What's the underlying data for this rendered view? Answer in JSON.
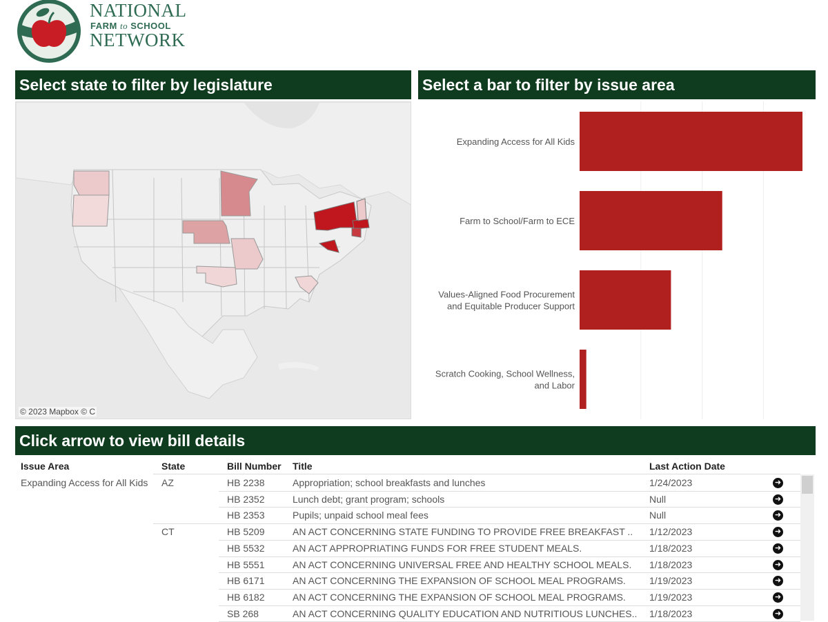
{
  "logo": {
    "line1": "NATIONAL",
    "line2_a": "FARM",
    "line2_to": "to",
    "line2_b": "SCHOOL",
    "line3": "NETWORK"
  },
  "headers": {
    "map": "Select state to filter by legislature",
    "bar": "Select a bar to filter by issue area",
    "table": "Click arrow to view bill details"
  },
  "map": {
    "attribution": "© 2023 Mapbox  © C",
    "highlight_color_dark": "#c0161e",
    "highlight_color_mid": "#d78a8d",
    "highlight_color_light": "#ecc9ca"
  },
  "chart_data": {
    "type": "bar",
    "orientation": "horizontal",
    "categories": [
      "Expanding Access for All Kids",
      "Farm to School/Farm to ECE",
      "Values-Aligned Food Procurement and Equitable Producer Support",
      "Scratch Cooking, School Wellness, and Labor"
    ],
    "category_lines": [
      [
        "Expanding Access for All Kids"
      ],
      [
        "Farm to School/Farm to ECE"
      ],
      [
        "Values-Aligned Food Procurement",
        "and Equitable Producer Support"
      ],
      [
        "Scratch Cooking, School Wellness,",
        "and Labor"
      ]
    ],
    "values": [
      100,
      64,
      41,
      3
    ],
    "xlim": [
      0,
      100
    ],
    "gridlines": [
      27.5,
      55,
      82.5
    ],
    "bar_color": "#b0201f",
    "grid": true
  },
  "table": {
    "columns": [
      "Issue Area",
      "State",
      "Bill Number",
      "Title",
      "Last Action Date"
    ],
    "rows": [
      {
        "issue": "Expanding Access for All Kids",
        "state": "AZ",
        "bill": "HB 2238",
        "title": "Appropriation; school breakfasts and lunches",
        "date": "1/24/2023"
      },
      {
        "issue": "",
        "state": "",
        "bill": "HB 2352",
        "title": "Lunch debt; grant program; schools",
        "date": "Null"
      },
      {
        "issue": "",
        "state": "",
        "bill": "HB 2353",
        "title": "Pupils; unpaid school meal fees",
        "date": "Null"
      },
      {
        "issue": "",
        "state": "CT",
        "bill": "HB 5209",
        "title": "AN ACT CONCERNING STATE FUNDING TO PROVIDE FREE BREAKFAST ..",
        "date": "1/12/2023"
      },
      {
        "issue": "",
        "state": "",
        "bill": "HB 5532",
        "title": "AN ACT APPROPRIATING FUNDS FOR FREE STUDENT MEALS.",
        "date": "1/18/2023"
      },
      {
        "issue": "",
        "state": "",
        "bill": "HB 5551",
        "title": "AN ACT CONCERNING UNIVERSAL FREE AND HEALTHY SCHOOL MEALS.",
        "date": "1/18/2023"
      },
      {
        "issue": "",
        "state": "",
        "bill": "HB 6171",
        "title": "AN ACT CONCERNING THE EXPANSION OF SCHOOL MEAL PROGRAMS.",
        "date": "1/19/2023"
      },
      {
        "issue": "",
        "state": "",
        "bill": "HB 6182",
        "title": "AN ACT CONCERNING THE EXPANSION OF SCHOOL MEAL PROGRAMS.",
        "date": "1/19/2023"
      },
      {
        "issue": "",
        "state": "",
        "bill": "SB 268",
        "title": "AN ACT CONCERNING QUALITY EDUCATION AND NUTRITIOUS LUNCHES..",
        "date": "1/18/2023"
      }
    ],
    "arrow_icon": "arrow-right-circle-icon",
    "arrow_glyph": "➜"
  }
}
